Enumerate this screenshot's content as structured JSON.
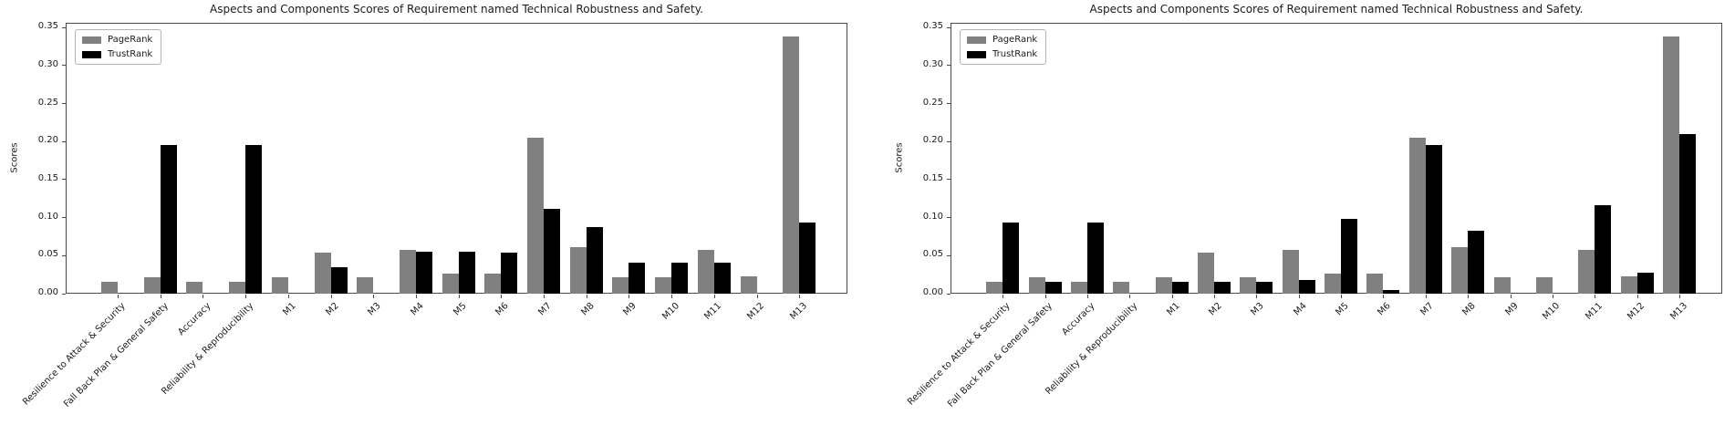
{
  "figure": {
    "background": "#ffffff"
  },
  "chart_data": [
    {
      "type": "bar",
      "title": "Aspects and Components Scores of Requirement named Technical Robustness and Safety.",
      "ylabel": "Scores",
      "xlabel": "",
      "ylim": [
        0,
        0.35
      ],
      "yticks": [
        "0.00",
        "0.05",
        "0.10",
        "0.15",
        "0.20",
        "0.25",
        "0.30",
        "0.35"
      ],
      "grid": false,
      "legend_position": "upper left",
      "categories": [
        "Resilience to Attack & Security",
        "Fall Back Plan & General Safety",
        "Accuracy",
        "Reliability & Reproducibility",
        "M1",
        "M2",
        "M3",
        "M4",
        "M5",
        "M6",
        "M7",
        "M8",
        "M9",
        "M10",
        "M11",
        "M12",
        "M13"
      ],
      "series": [
        {
          "name": "PageRank",
          "color": "#808080",
          "values": [
            0.016,
            0.021,
            0.016,
            0.016,
            0.021,
            0.054,
            0.021,
            0.058,
            0.026,
            0.026,
            0.205,
            0.061,
            0.021,
            0.021,
            0.058,
            0.023,
            0.338
          ]
        },
        {
          "name": "TrustRank",
          "color": "#000000",
          "values": [
            0.0,
            0.195,
            0.0,
            0.195,
            0.0,
            0.035,
            0.0,
            0.055,
            0.055,
            0.054,
            0.111,
            0.088,
            0.041,
            0.041,
            0.041,
            0.0,
            0.093
          ]
        }
      ]
    },
    {
      "type": "bar",
      "title": "Aspects and Components Scores of Requirement named Technical Robustness and Safety.",
      "ylabel": "Scores",
      "xlabel": "",
      "ylim": [
        0,
        0.35
      ],
      "yticks": [
        "0.00",
        "0.05",
        "0.10",
        "0.15",
        "0.20",
        "0.25",
        "0.30",
        "0.35"
      ],
      "grid": false,
      "legend_position": "upper left",
      "categories": [
        "Resilience to Attack & Security",
        "Fall Back Plan & General Safety",
        "Accuracy",
        "Reliability & Reproducibility",
        "M1",
        "M2",
        "M3",
        "M4",
        "M5",
        "M6",
        "M7",
        "M8",
        "M9",
        "M10",
        "M11",
        "M12",
        "M13"
      ],
      "series": [
        {
          "name": "PageRank",
          "color": "#808080",
          "values": [
            0.016,
            0.021,
            0.016,
            0.016,
            0.021,
            0.054,
            0.021,
            0.058,
            0.026,
            0.026,
            0.205,
            0.061,
            0.021,
            0.021,
            0.058,
            0.023,
            0.338
          ]
        },
        {
          "name": "TrustRank",
          "color": "#000000",
          "values": [
            0.093,
            0.015,
            0.093,
            0.0,
            0.015,
            0.016,
            0.016,
            0.018,
            0.098,
            0.005,
            0.196,
            0.083,
            0.0,
            0.0,
            0.116,
            0.027,
            0.21
          ]
        }
      ]
    }
  ]
}
